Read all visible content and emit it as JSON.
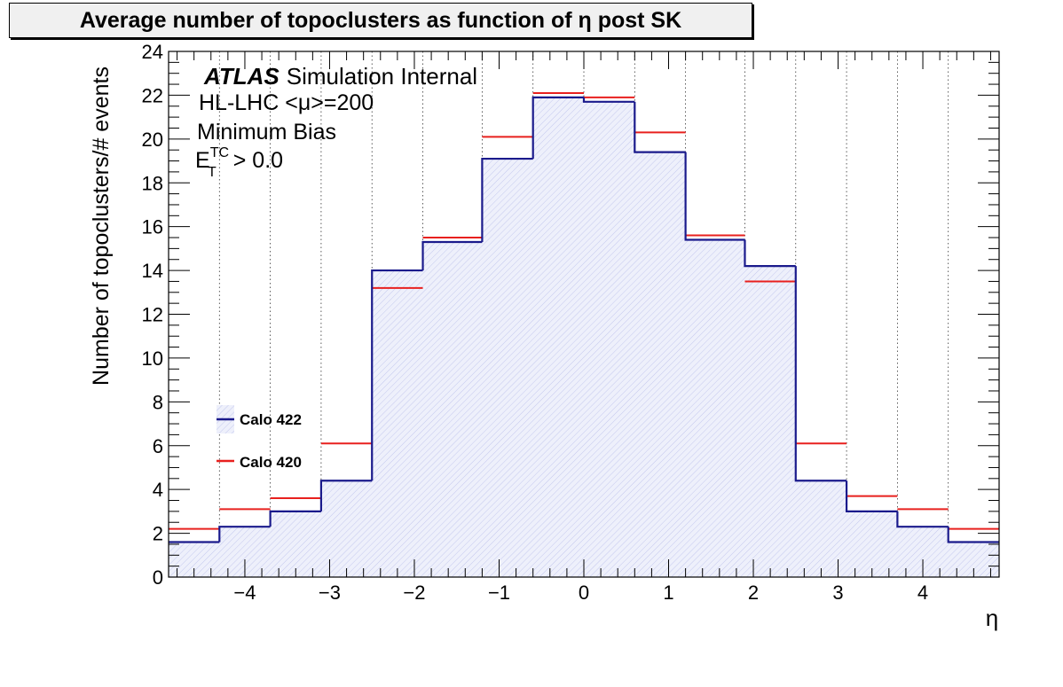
{
  "chart_data": {
    "type": "step-histogram",
    "title": "Average number of topoclusters as function of η post SK",
    "xlabel": "η",
    "ylabel": "Number of topoclusters/# events",
    "xlim": [
      -4.9,
      4.9
    ],
    "ylim": [
      0,
      24
    ],
    "x_ticks": [
      -4,
      -3,
      -2,
      -1,
      0,
      1,
      2,
      3,
      4
    ],
    "x_tick_labels": [
      "−4",
      "−3",
      "−2",
      "−1",
      "0",
      "1",
      "2",
      "3",
      "4"
    ],
    "y_ticks": [
      0,
      2,
      4,
      6,
      8,
      10,
      12,
      14,
      16,
      18,
      20,
      22,
      24
    ],
    "y_tick_labels": [
      "0",
      "2",
      "4",
      "6",
      "8",
      "10",
      "12",
      "14",
      "16",
      "18",
      "20",
      "22",
      "24"
    ],
    "bin_edges": [
      -4.9,
      -4.3,
      -3.7,
      -3.1,
      -2.5,
      -1.9,
      -1.2,
      -0.6,
      0,
      0.6,
      1.2,
      1.9,
      2.5,
      3.1,
      3.7,
      4.3,
      4.9
    ],
    "grid": "vertical dotted at bin edges",
    "series": [
      {
        "name": "Calo 422",
        "color": "#1a1a8c",
        "fill": "hatched light blue",
        "values": [
          1.6,
          2.3,
          3.0,
          4.4,
          14.0,
          15.3,
          19.1,
          21.9,
          21.7,
          19.4,
          15.4,
          14.2,
          4.4,
          3.0,
          2.3,
          1.6
        ]
      },
      {
        "name": "Calo 420",
        "color": "#e8201e",
        "values": [
          2.2,
          3.1,
          3.6,
          6.1,
          13.2,
          15.5,
          20.1,
          22.1,
          21.9,
          20.3,
          15.6,
          13.5,
          6.1,
          3.7,
          3.1,
          2.2
        ]
      }
    ],
    "legend_position": "left-center",
    "annotations": {
      "atlas": "ATLAS",
      "atlas_suffix": "Simulation Internal",
      "line2": "HL-LHC <μ>=200",
      "line3": "Minimum Bias",
      "line4_base": "E",
      "line4_sup": "TC",
      "line4_sub": "T",
      "line4_rest": " > 0.0"
    }
  }
}
